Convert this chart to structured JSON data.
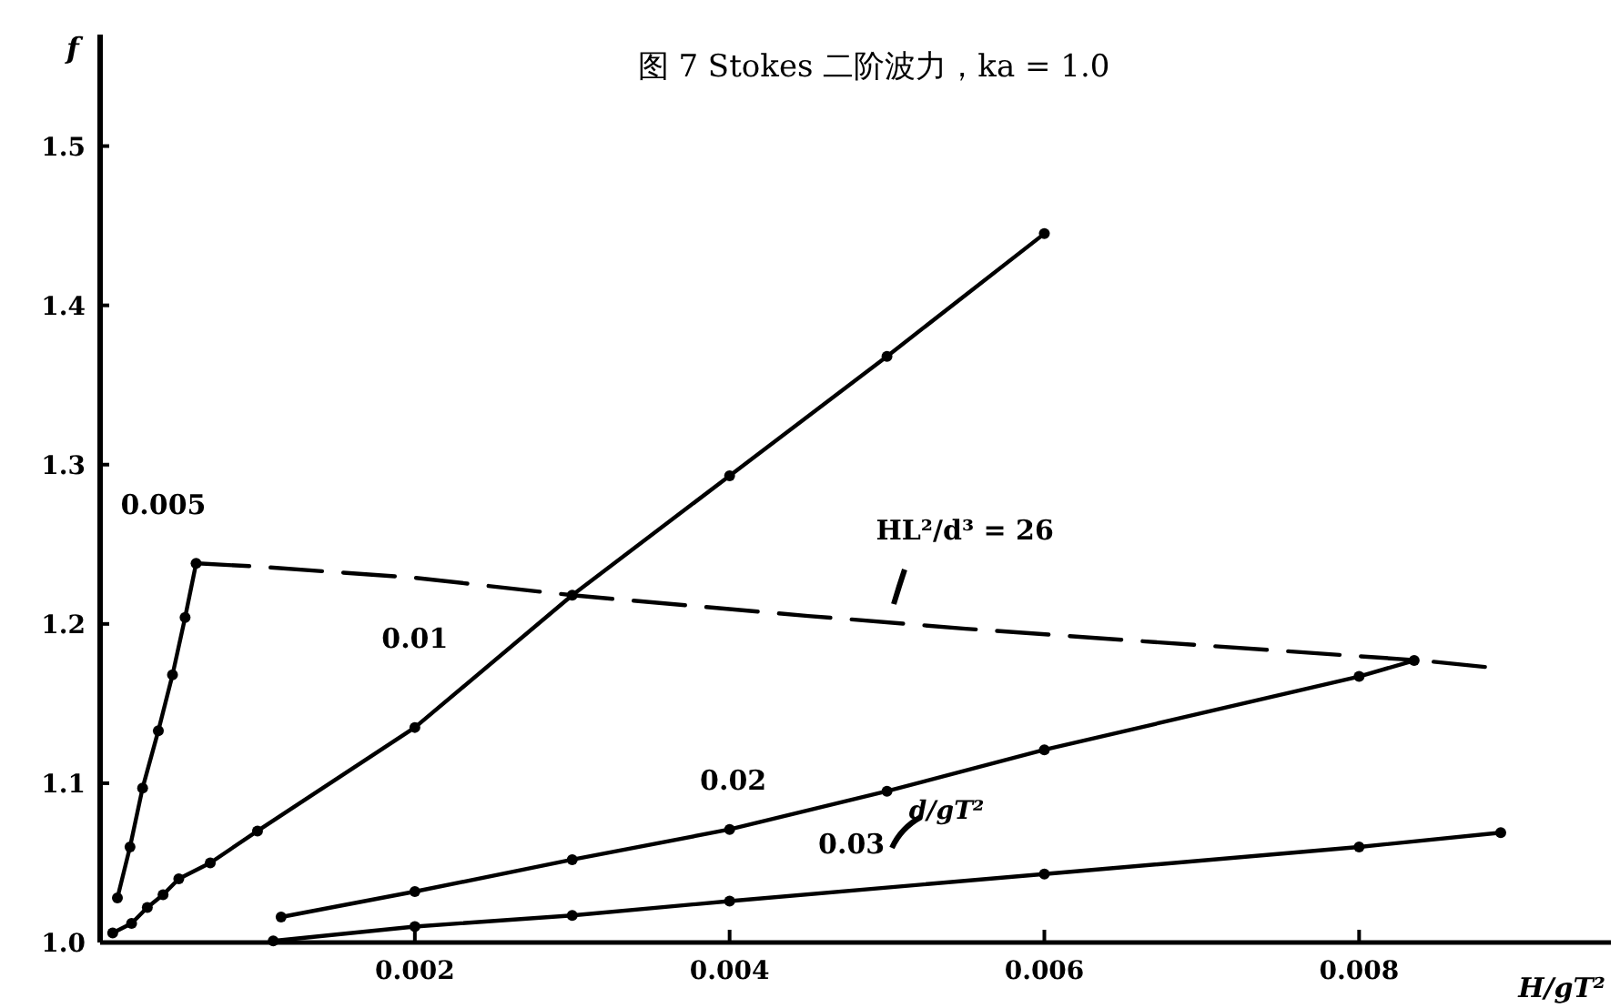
{
  "chart_data": {
    "type": "line",
    "title": "图 7  Stokes 二阶波力，ka = 1.0",
    "xlabel": "H/gT²",
    "ylabel": "f",
    "xlim": [
      0,
      0.0096
    ],
    "ylim": [
      1.0,
      1.57
    ],
    "xticks": [
      {
        "value": 0.002,
        "label": "0.002"
      },
      {
        "value": 0.004,
        "label": "0.004"
      },
      {
        "value": 0.006,
        "label": "0.006"
      },
      {
        "value": 0.008,
        "label": "0.008"
      }
    ],
    "yticks": [
      {
        "value": 1.0,
        "label": "1.0"
      },
      {
        "value": 1.1,
        "label": "1.1"
      },
      {
        "value": 1.2,
        "label": "1.2"
      },
      {
        "value": 1.3,
        "label": "1.3"
      },
      {
        "value": 1.4,
        "label": "1.4"
      },
      {
        "value": 1.5,
        "label": "1.5"
      }
    ],
    "grid": false,
    "marker": "circle",
    "line_style": "solid",
    "annotations": [
      "d/gT²"
    ],
    "series": [
      {
        "name": "0.005",
        "color": "#000000",
        "x": [
          0.00011,
          0.00019,
          0.00027,
          0.00037,
          0.00046,
          0.00054,
          0.00061
        ],
        "values": [
          1.028,
          1.06,
          1.097,
          1.133,
          1.168,
          1.204,
          1.238
        ]
      },
      {
        "name": "0.01",
        "color": "#000000",
        "x": [
          8e-05,
          0.0002,
          0.0003,
          0.0004,
          0.0005,
          0.0007,
          0.001,
          0.002,
          0.003,
          0.004,
          0.005,
          0.006
        ],
        "values": [
          1.006,
          1.012,
          1.022,
          1.03,
          1.04,
          1.05,
          1.07,
          1.135,
          1.218,
          1.293,
          1.368,
          1.445
        ]
      },
      {
        "name": "0.02",
        "color": "#000000",
        "x": [
          0.00115,
          0.002,
          0.003,
          0.004,
          0.005,
          0.006,
          0.008,
          0.00835
        ],
        "values": [
          1.016,
          1.032,
          1.052,
          1.071,
          1.095,
          1.121,
          1.167,
          1.177
        ]
      },
      {
        "name": "0.03",
        "color": "#000000",
        "x": [
          0.0011,
          0.002,
          0.003,
          0.004,
          0.006,
          0.008,
          0.0089
        ],
        "values": [
          1.001,
          1.01,
          1.017,
          1.026,
          1.043,
          1.06,
          1.069
        ]
      },
      {
        "name": "HL²/d³ = 26",
        "color": "#000000",
        "marker": "none",
        "line_style": "dashed",
        "x": [
          0.00062,
          0.001,
          0.002,
          0.003,
          0.0045,
          0.0055,
          0.0065,
          0.0084,
          0.0088
        ],
        "values": [
          1.238,
          1.236,
          1.229,
          1.218,
          1.205,
          1.197,
          1.19,
          1.177,
          1.173
        ]
      }
    ]
  }
}
